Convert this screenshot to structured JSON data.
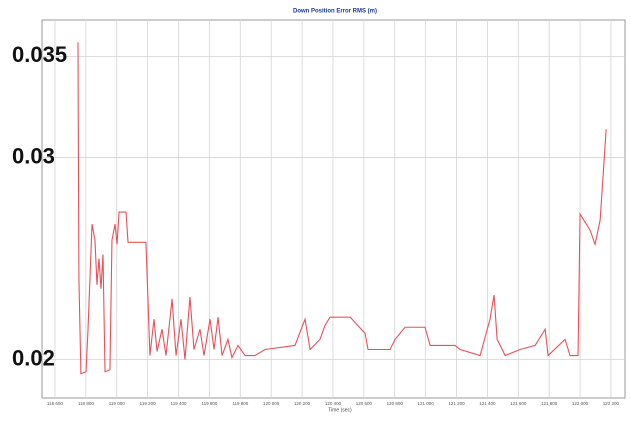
{
  "chart_data": {
    "type": "line",
    "title": "Down Position Error RMS (m)",
    "x_label": "Time (sec)",
    "color": "#e8505b",
    "grid": true,
    "xlim": [
      118516,
      122291
    ],
    "ylim": [
      0.0181,
      0.0368
    ],
    "yticks": [
      0.02,
      0.03,
      0.035
    ],
    "xticks": [
      {
        "value": 118600,
        "label": "118 600"
      },
      {
        "value": 118800,
        "label": "118 800"
      },
      {
        "value": 119000,
        "label": "119 000"
      },
      {
        "value": 119200,
        "label": "119 200"
      },
      {
        "value": 119400,
        "label": "119 400"
      },
      {
        "value": 119600,
        "label": "119 600"
      },
      {
        "value": 119800,
        "label": "119 800"
      },
      {
        "value": 120000,
        "label": "120 000"
      },
      {
        "value": 120200,
        "label": "120 200"
      },
      {
        "value": 120400,
        "label": "120 400"
      },
      {
        "value": 120600,
        "label": "120 600"
      },
      {
        "value": 120800,
        "label": "120 800"
      },
      {
        "value": 121000,
        "label": "121 000"
      },
      {
        "value": 121200,
        "label": "121 200"
      },
      {
        "value": 121400,
        "label": "121 400"
      },
      {
        "value": 121600,
        "label": "121 600"
      },
      {
        "value": 121800,
        "label": "121 800"
      },
      {
        "value": 122000,
        "label": "122 000"
      },
      {
        "value": 122200,
        "label": "122 200"
      }
    ],
    "x": [
      118749,
      118755,
      118768,
      118801,
      118814,
      118840,
      118859,
      118872,
      118885,
      118898,
      118911,
      118924,
      118956,
      118969,
      118989,
      119002,
      119015,
      119060,
      119073,
      119189,
      119215,
      119241,
      119261,
      119293,
      119319,
      119358,
      119384,
      119416,
      119442,
      119474,
      119500,
      119539,
      119565,
      119604,
      119630,
      119656,
      119682,
      119720,
      119746,
      119785,
      119831,
      119895,
      119960,
      120154,
      120219,
      120252,
      120316,
      120349,
      120381,
      120511,
      120608,
      120627,
      120770,
      120802,
      120867,
      120996,
      121029,
      121191,
      121223,
      121353,
      121417,
      121443,
      121463,
      121515,
      121612,
      121709,
      121774,
      121793,
      121903,
      121935,
      121987,
      122000,
      122065,
      122097,
      122130,
      122169
    ],
    "values": [
      0.0357,
      0.024,
      0.0193,
      0.0194,
      0.0215,
      0.0267,
      0.0259,
      0.0237,
      0.025,
      0.0235,
      0.0252,
      0.0194,
      0.0195,
      0.0259,
      0.0267,
      0.0257,
      0.0273,
      0.0273,
      0.0258,
      0.0258,
      0.0202,
      0.022,
      0.0204,
      0.0215,
      0.0202,
      0.023,
      0.0202,
      0.022,
      0.02,
      0.0231,
      0.0205,
      0.0215,
      0.0202,
      0.022,
      0.0205,
      0.0221,
      0.0202,
      0.021,
      0.0201,
      0.0207,
      0.0202,
      0.0202,
      0.0205,
      0.0207,
      0.022,
      0.0205,
      0.021,
      0.0217,
      0.0221,
      0.0221,
      0.0213,
      0.0205,
      0.0205,
      0.021,
      0.0216,
      0.0216,
      0.0207,
      0.0207,
      0.0205,
      0.0202,
      0.022,
      0.0232,
      0.021,
      0.0202,
      0.0205,
      0.0207,
      0.0215,
      0.0202,
      0.021,
      0.0202,
      0.0202,
      0.0272,
      0.0264,
      0.0257,
      0.0269,
      0.0314
    ]
  }
}
